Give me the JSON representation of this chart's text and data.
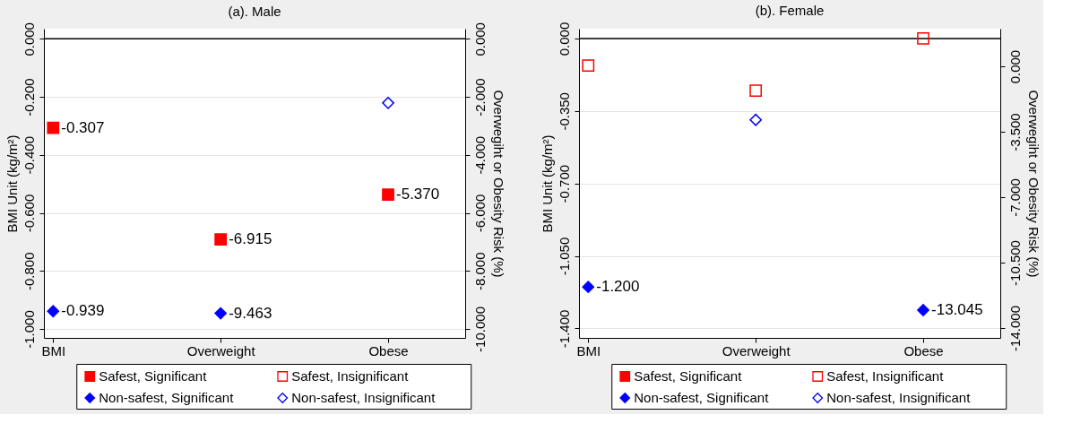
{
  "chart_data": [
    {
      "type": "scatter",
      "title": "(a). Male",
      "categories": [
        "BMI",
        "Overweight",
        "Obese"
      ],
      "ylabel": "BMI Unit (kg/m²)",
      "y2label": "Overwegiht or Obesity Risk (%)",
      "ylim": [
        -1.031,
        0.035
      ],
      "yticks": [
        {
          "value": 0,
          "label": "0.000"
        },
        {
          "value": -0.2,
          "label": "-0.200"
        },
        {
          "value": -0.4,
          "label": "-0.400"
        },
        {
          "value": -0.6,
          "label": "-0.600"
        },
        {
          "value": -0.8,
          "label": "-0.800"
        },
        {
          "value": -1,
          "label": "-1.000"
        }
      ],
      "y2lim": [
        -10.31,
        0.35
      ],
      "y2ticks": [
        {
          "value": 0,
          "label": "0.000"
        },
        {
          "value": -2,
          "label": "-2.000"
        },
        {
          "value": -4,
          "label": "-4.000"
        },
        {
          "value": -6,
          "label": "-6.000"
        },
        {
          "value": -8,
          "label": "-8.000"
        },
        {
          "value": -10,
          "label": "-10.000"
        }
      ],
      "grid": "y",
      "legend": "bottom",
      "ref_lines": [
        {
          "axis": "y",
          "value": 0,
          "color": "#000000"
        }
      ],
      "series": [
        {
          "name": "Safest, Significant",
          "color": "#ff0000",
          "marker": "square",
          "values": [
            -0.307,
            null,
            null
          ],
          "value_labels": [
            "-0.307",
            null,
            null
          ]
        },
        {
          "color": "#ff0000",
          "marker": "square",
          "axis": "y2",
          "values": [
            null,
            -6.915,
            -5.37
          ],
          "value_labels": [
            null,
            "-6.915",
            "-5.370"
          ]
        },
        {
          "name": "Safest, Insignificant",
          "color": "#ff0000",
          "marker": "square-open",
          "values": [
            null,
            null,
            null
          ]
        },
        {
          "name": "Non-safest, Significant",
          "color": "#0000ff",
          "marker": "diamond",
          "values": [
            -0.939,
            null,
            null
          ],
          "value_labels": [
            "-0.939",
            null,
            null
          ]
        },
        {
          "color": "#0000ff",
          "marker": "diamond",
          "axis": "y2",
          "values": [
            null,
            -9.463,
            null
          ],
          "value_labels": [
            null,
            "-9.463",
            null
          ]
        },
        {
          "name": "Non-safest, Insignificant",
          "color": "#0000ff",
          "marker": "diamond-open",
          "axis": "y2",
          "values": [
            null,
            null,
            -2.21
          ]
        }
      ]
    },
    {
      "type": "scatter",
      "title": "(b). Female",
      "categories": [
        "BMI",
        "Overweight",
        "Obese"
      ],
      "ylabel": "BMI Unit (kg/m²)",
      "y2label": "Overwegiht or Obesity Risk (%)",
      "ylim": [
        -1.446,
        0.0475
      ],
      "yticks": [
        {
          "value": 0,
          "label": "0.000"
        },
        {
          "value": -0.35,
          "label": "-0.350"
        },
        {
          "value": -0.7,
          "label": "-0.700"
        },
        {
          "value": -1.05,
          "label": "-1.050"
        },
        {
          "value": -1.4,
          "label": "-1.400"
        }
      ],
      "y2lim": [
        -14.53,
        2.02
      ],
      "y2ticks": [
        {
          "value": 0,
          "label": "0.000"
        },
        {
          "value": -3.5,
          "label": "-3.500"
        },
        {
          "value": -7,
          "label": "-7.000"
        },
        {
          "value": -10.5,
          "label": "-10.500"
        },
        {
          "value": -14,
          "label": "-14.000"
        }
      ],
      "grid": "y",
      "legend": "bottom",
      "ref_lines": [
        {
          "axis": "y",
          "value": 0,
          "color": "#000000"
        }
      ],
      "series": [
        {
          "name": "Safest, Significant",
          "color": "#ff0000",
          "marker": "square",
          "values": [
            null,
            null,
            null
          ]
        },
        {
          "name": "Safest, Insignificant",
          "color": "#ff0000",
          "marker": "square-open",
          "values": [
            -0.13,
            null,
            null
          ]
        },
        {
          "color": "#ff0000",
          "marker": "square-open",
          "axis": "y2",
          "values": [
            null,
            -1.3,
            1.5
          ]
        },
        {
          "name": "Non-safest, Significant",
          "color": "#0000ff",
          "marker": "diamond",
          "values": [
            -1.2,
            null,
            null
          ],
          "value_labels": [
            "-1.200",
            null,
            null
          ]
        },
        {
          "color": "#0000ff",
          "marker": "diamond",
          "axis": "y2",
          "values": [
            null,
            null,
            -13.045
          ],
          "value_labels": [
            null,
            null,
            "-13.045"
          ]
        },
        {
          "name": "Non-safest, Insignificant",
          "color": "#0000ff",
          "marker": "diamond-open",
          "axis": "y2",
          "values": [
            null,
            -2.86,
            null
          ]
        }
      ]
    }
  ]
}
